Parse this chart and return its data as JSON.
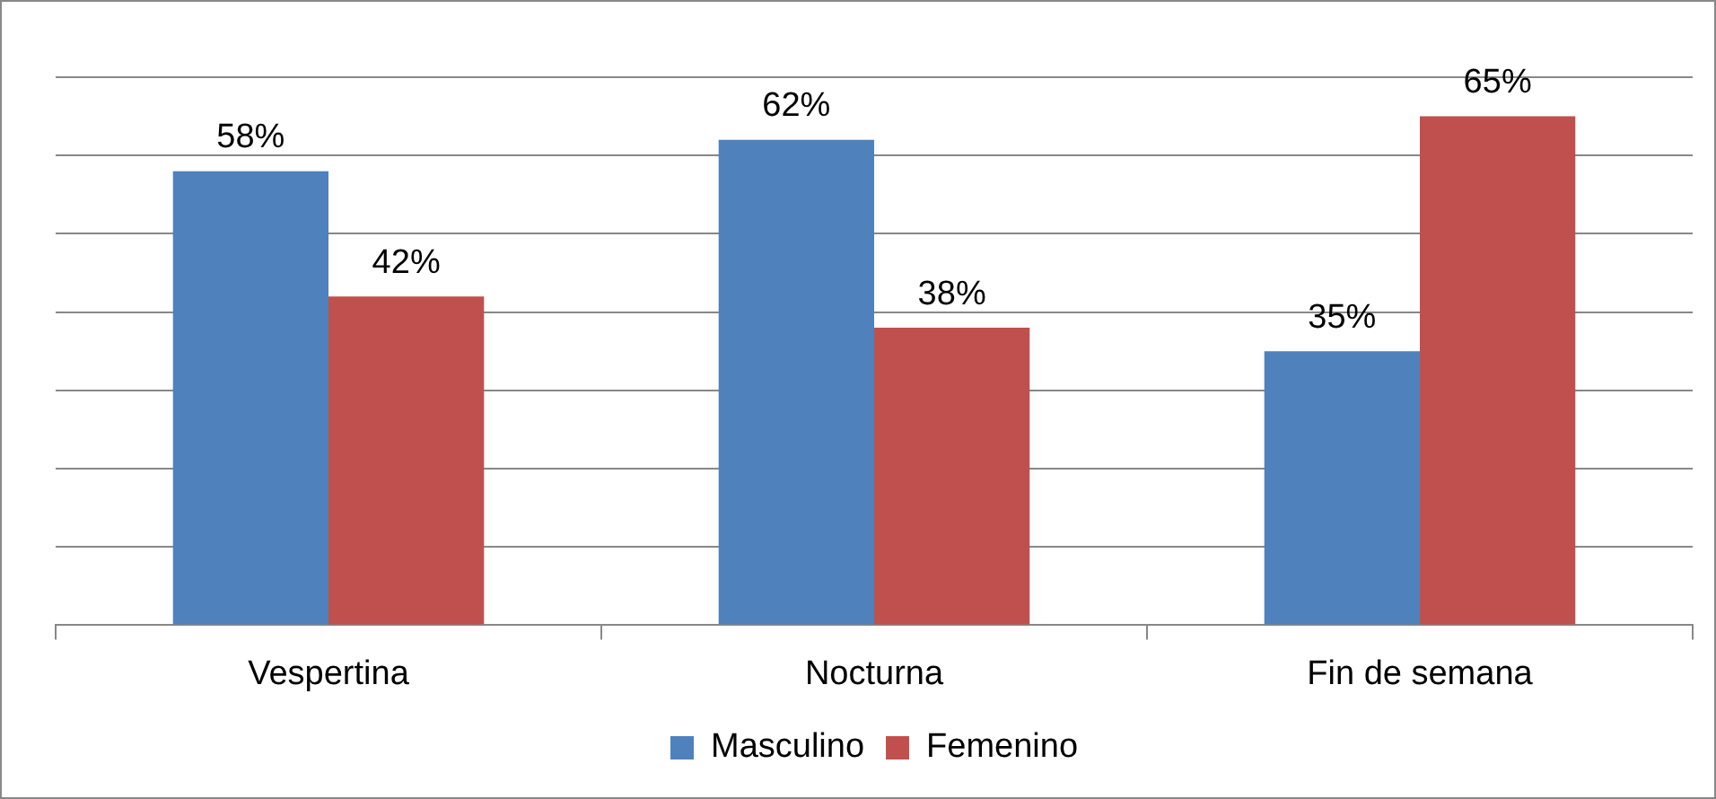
{
  "chart_data": {
    "type": "bar",
    "categories": [
      "Vespertina",
      "Nocturna",
      "Fin de semana"
    ],
    "series": [
      {
        "name": "Masculino",
        "color": "#4f81bd",
        "values": [
          58,
          62,
          35
        ],
        "value_labels": [
          "58%",
          "62%",
          "35%"
        ]
      },
      {
        "name": "Femenino",
        "color": "#c0504d",
        "values": [
          42,
          38,
          65
        ],
        "value_labels": [
          "42%",
          "38%",
          "65%"
        ]
      }
    ],
    "ylim": [
      0,
      70
    ],
    "yticks": [
      {
        "value": 0,
        "label": null
      },
      {
        "value": 10,
        "label": null
      },
      {
        "value": 20,
        "label": null
      },
      {
        "value": 30,
        "label": null
      },
      {
        "value": 40,
        "label": null
      },
      {
        "value": 50,
        "label": null
      },
      {
        "value": 60,
        "label": null
      },
      {
        "value": 70,
        "label": null
      }
    ],
    "tick_labels": "x",
    "grid": "y",
    "legend": "bottom"
  }
}
